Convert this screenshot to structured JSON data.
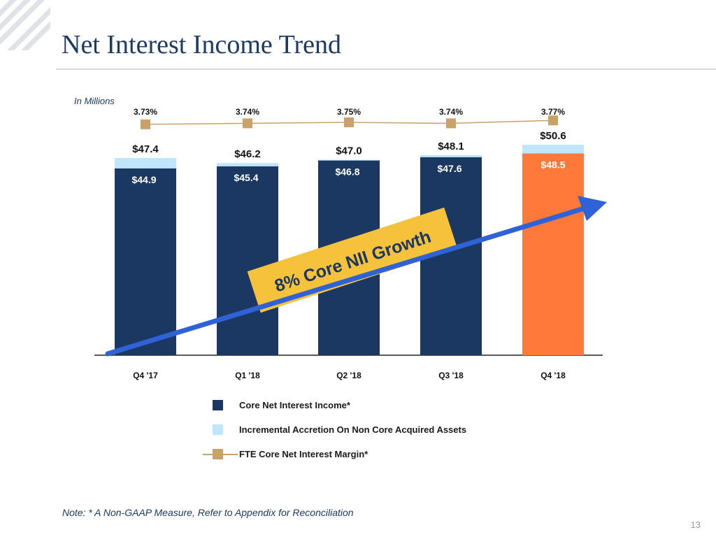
{
  "slide": {
    "title": "Net Interest Income Trend",
    "units_note": "In Millions",
    "footnote": "Note: * A Non-GAAP Measure, Refer to Appendix for Reconciliation",
    "page_number": "13"
  },
  "colors": {
    "core": "#1b3862",
    "accretion": "#bfe6fb",
    "highlight": "#ff7a3a",
    "margin_line": "#c9a26a",
    "arrow": "#2f62d6",
    "banner": "#f7c23b",
    "title": "#1b3a66"
  },
  "legend": {
    "core_label": "Core Net Interest Income*",
    "accretion_label": "Incremental Accretion On Non Core Acquired Assets",
    "margin_label": "FTE Core Net Interest Margin*"
  },
  "annotation": {
    "text": "8% Core NII Growth"
  },
  "chart_data": {
    "type": "bar",
    "stacked": true,
    "title": "Net Interest Income Trend",
    "ylabel": "In Millions",
    "ylim": [
      0,
      50.6
    ],
    "categories": [
      "Q4 '17",
      "Q1 '18",
      "Q2 '18",
      "Q3 '18",
      "Q4 '18"
    ],
    "series": [
      {
        "name": "Core Net Interest Income*",
        "values": [
          44.9,
          45.4,
          46.8,
          47.6,
          48.5
        ]
      },
      {
        "name": "Incremental Accretion On Non Core Acquired Assets",
        "values": [
          2.5,
          0.8,
          0.2,
          0.5,
          2.1
        ]
      }
    ],
    "core_labels": [
      "$44.9",
      "$45.4",
      "$46.8",
      "$47.6",
      "$48.5"
    ],
    "total_labels": [
      "$47.4",
      "$46.2",
      "$47.0",
      "$48.1",
      "$50.6"
    ],
    "highlight_index": 4,
    "line_series": {
      "name": "FTE Core Net Interest Margin*",
      "values": [
        3.73,
        3.74,
        3.75,
        3.74,
        3.77
      ],
      "labels": [
        "3.73%",
        "3.74%",
        "3.75%",
        "3.74%",
        "3.77%"
      ]
    }
  }
}
